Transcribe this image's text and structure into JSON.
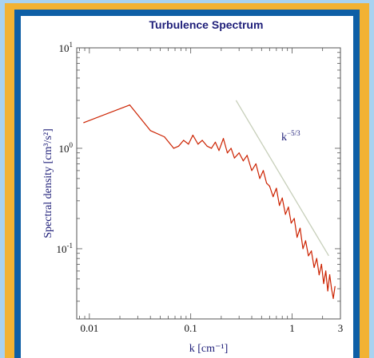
{
  "chart_data": {
    "type": "line",
    "title": "Turbulence Spectrum",
    "xlabel": "k [cm⁻¹]",
    "ylabel": "Spectral density [cm³/s²]",
    "xscale": "log",
    "yscale": "log",
    "xlim": [
      0.0075,
      3.0
    ],
    "ylim": [
      0.02,
      10
    ],
    "x_ticks": [
      {
        "value": 0.01,
        "label": "0.01"
      },
      {
        "value": 0.1,
        "label": "0.1"
      },
      {
        "value": 1,
        "label": "1"
      },
      {
        "value": 3,
        "label": "3"
      }
    ],
    "y_ticks": [
      {
        "value": 10,
        "base": "10",
        "exp": "1"
      },
      {
        "value": 1,
        "base": "10",
        "exp": "0"
      },
      {
        "value": 0.1,
        "base": "10",
        "exp": "-1"
      }
    ],
    "grid": false,
    "series": [
      {
        "color": "#cc2200",
        "x": [
          0.0088,
          0.025,
          0.04,
          0.055,
          0.068,
          0.076,
          0.085,
          0.095,
          0.105,
          0.118,
          0.13,
          0.145,
          0.16,
          0.175,
          0.19,
          0.21,
          0.23,
          0.25,
          0.27,
          0.3,
          0.33,
          0.36,
          0.4,
          0.44,
          0.48,
          0.52,
          0.56,
          0.6,
          0.65,
          0.7,
          0.75,
          0.8,
          0.86,
          0.92,
          0.98,
          1.05,
          1.12,
          1.2,
          1.28,
          1.36,
          1.45,
          1.55,
          1.65,
          1.75,
          1.85,
          1.95,
          2.05,
          2.15,
          2.25,
          2.35,
          2.45,
          2.55,
          2.65
        ],
        "values": [
          1.8,
          2.7,
          1.5,
          1.3,
          1.0,
          1.05,
          1.2,
          1.1,
          1.35,
          1.1,
          1.2,
          1.05,
          1.0,
          1.15,
          0.95,
          1.25,
          0.9,
          1.0,
          0.8,
          0.9,
          0.75,
          0.85,
          0.6,
          0.7,
          0.5,
          0.6,
          0.45,
          0.42,
          0.33,
          0.4,
          0.27,
          0.32,
          0.22,
          0.26,
          0.18,
          0.2,
          0.13,
          0.16,
          0.1,
          0.12,
          0.085,
          0.095,
          0.065,
          0.08,
          0.055,
          0.07,
          0.045,
          0.06,
          0.038,
          0.055,
          0.04,
          0.032,
          0.042
        ]
      }
    ],
    "reference_line": {
      "label_base": "k",
      "label_exp": "−5/3",
      "color": "#c7cfba",
      "x": [
        0.28,
        2.3
      ],
      "values": [
        3.0,
        0.085
      ]
    }
  }
}
